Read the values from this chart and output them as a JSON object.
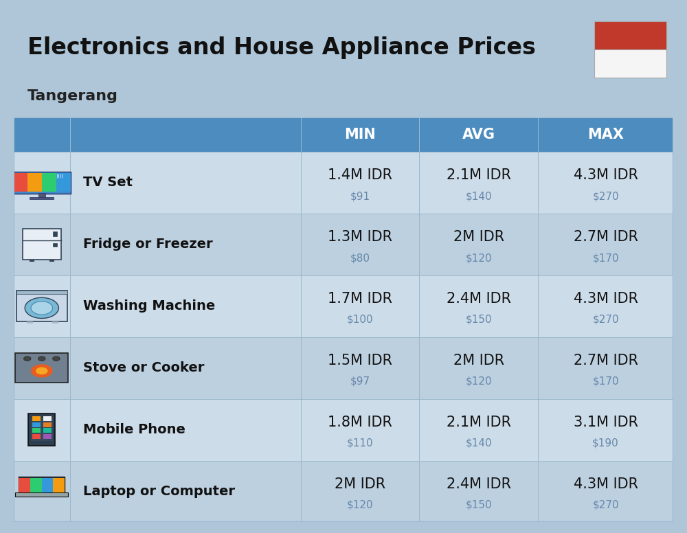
{
  "title": "Electronics and House Appliance Prices",
  "subtitle": "Tangerang",
  "background_color": "#aec6d8",
  "header_color": "#4d8cbe",
  "header_text_color": "#ffffff",
  "col_headers": [
    "MIN",
    "AVG",
    "MAX"
  ],
  "items": [
    {
      "name": "TV Set",
      "min_idr": "1.4M IDR",
      "min_usd": "$91",
      "avg_idr": "2.1M IDR",
      "avg_usd": "$140",
      "max_idr": "4.3M IDR",
      "max_usd": "$270"
    },
    {
      "name": "Fridge or Freezer",
      "min_idr": "1.3M IDR",
      "min_usd": "$80",
      "avg_idr": "2M IDR",
      "avg_usd": "$120",
      "max_idr": "2.7M IDR",
      "max_usd": "$170"
    },
    {
      "name": "Washing Machine",
      "min_idr": "1.7M IDR",
      "min_usd": "$100",
      "avg_idr": "2.4M IDR",
      "avg_usd": "$150",
      "max_idr": "4.3M IDR",
      "max_usd": "$270"
    },
    {
      "name": "Stove or Cooker",
      "min_idr": "1.5M IDR",
      "min_usd": "$97",
      "avg_idr": "2M IDR",
      "avg_usd": "$120",
      "max_idr": "2.7M IDR",
      "max_usd": "$170"
    },
    {
      "name": "Mobile Phone",
      "min_idr": "1.8M IDR",
      "min_usd": "$110",
      "avg_idr": "2.1M IDR",
      "avg_usd": "$140",
      "max_idr": "3.1M IDR",
      "max_usd": "$190"
    },
    {
      "name": "Laptop or Computer",
      "min_idr": "2M IDR",
      "min_usd": "$120",
      "avg_idr": "2.4M IDR",
      "avg_usd": "$150",
      "max_idr": "4.3M IDR",
      "max_usd": "$270"
    }
  ],
  "name_fontsize": 14,
  "value_fontsize": 15,
  "usd_fontsize": 11,
  "header_fontsize": 15,
  "title_fontsize": 24,
  "subtitle_fontsize": 16,
  "row_colors": [
    "#cddce9",
    "#bdd0e0"
  ],
  "grid_color": "#9ab8cc",
  "flag_red": "#c0392b",
  "flag_white": "#f5f5f5",
  "flag_border": "#aaaaaa"
}
